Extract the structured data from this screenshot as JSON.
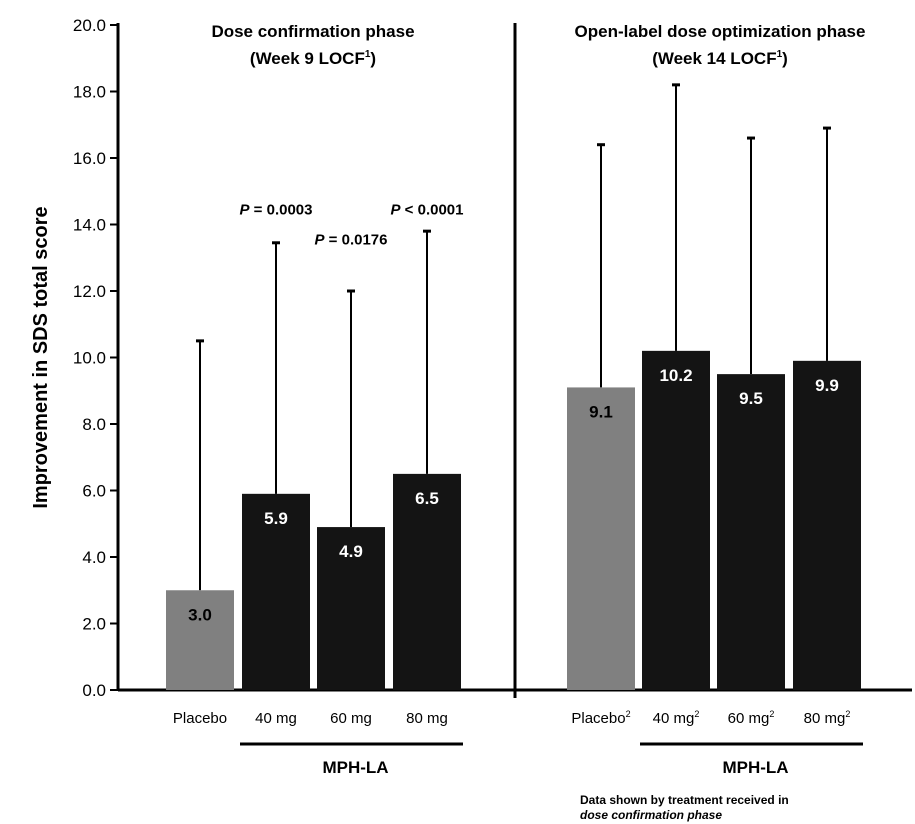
{
  "chart_data": {
    "type": "bar",
    "ylabel": "Improvement in SDS total score",
    "ylim": [
      0,
      20
    ],
    "yticks": [
      "0.0",
      "2.0",
      "4.0",
      "6.0",
      "8.0",
      "10.0",
      "12.0",
      "14.0",
      "16.0",
      "18.0",
      "20.0"
    ],
    "grid": false,
    "colors": {
      "placebo": "#808080",
      "active": "#141414"
    },
    "panels": [
      {
        "title_line1": "Dose confirmation phase",
        "title_line2": "(Week 9 LOCF",
        "title_sup": "1",
        "title_close": ")",
        "categories": [
          {
            "label": "Placebo",
            "sup": ""
          },
          {
            "label": "40 mg",
            "sup": ""
          },
          {
            "label": "60 mg",
            "sup": ""
          },
          {
            "label": "80 mg",
            "sup": ""
          }
        ],
        "values": [
          3.0,
          5.9,
          4.9,
          6.5
        ],
        "value_labels": [
          "3.0",
          "5.9",
          "4.9",
          "6.5"
        ],
        "error_upper": [
          10.5,
          13.45,
          12.0,
          13.8
        ],
        "bar_types": [
          "placebo",
          "active",
          "active",
          "active"
        ],
        "group_label": "MPH-LA",
        "pvalues": [
          {
            "category_index": 1,
            "text": "= 0.0003",
            "y": 14.3
          },
          {
            "category_index": 2,
            "text": "= 0.0176",
            "y": 13.4
          },
          {
            "category_index": 3,
            "text": "< 0.0001",
            "y": 14.3
          }
        ]
      },
      {
        "title_line1": "Open-label dose optimization phase",
        "title_line2": "(Week 14 LOCF",
        "title_sup": "1",
        "title_close": ")",
        "categories": [
          {
            "label": "Placebo",
            "sup": "2"
          },
          {
            "label": "40 mg",
            "sup": "2"
          },
          {
            "label": "60 mg",
            "sup": "2"
          },
          {
            "label": "80 mg",
            "sup": "2"
          }
        ],
        "values": [
          9.1,
          10.2,
          9.5,
          9.9
        ],
        "value_labels": [
          "9.1",
          "10.2",
          "9.5",
          "9.9"
        ],
        "error_upper": [
          16.4,
          18.2,
          16.6,
          16.9
        ],
        "bar_types": [
          "placebo",
          "active",
          "active",
          "active"
        ],
        "group_label": "MPH-LA",
        "pvalues": []
      }
    ],
    "p_symbol": "P",
    "footnote_line1": "Data shown by treatment received in",
    "footnote_line2": "dose confirmation phase"
  }
}
